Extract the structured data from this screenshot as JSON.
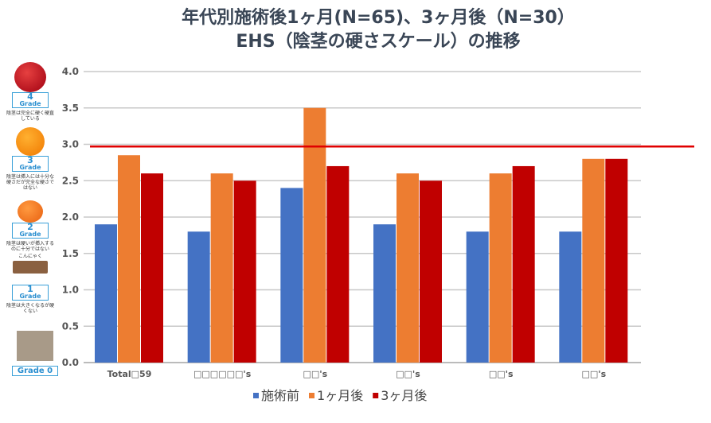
{
  "title_line1": "年代別施術後1ヶ月(N=65)、3ヶ月後（N=30）",
  "title_line2": "EHS（陰茎の硬さスケール）の推移",
  "grades": [
    {
      "num": "4",
      "label": "Grade",
      "desc": "陰茎は完全に硬く硬直している"
    },
    {
      "num": "3",
      "label": "Grade",
      "desc": "陰茎は挿入には十分な硬さだが完全な硬さではない"
    },
    {
      "num": "2",
      "label": "Grade",
      "desc": "陰茎は硬いが挿入するのに十分ではない",
      "extra": "こんにゃく"
    },
    {
      "num": "1",
      "label": "Grade",
      "desc": "陰茎は大きくなるが硬くない"
    },
    {
      "label": "Grade 0"
    }
  ],
  "colors": {
    "s0": "#4472c4",
    "s1": "#ed7d31",
    "s2": "#c00000",
    "ref": "#e00000"
  },
  "chart_data": {
    "type": "bar",
    "title": "年代別施術後1ヶ月(N=65)、3ヶ月後（N=30） EHS（陰茎の硬さスケール）の推移",
    "categories": [
      "Total□59",
      "□□□□□□'s",
      "□□'s",
      "□□'s",
      "□□'s",
      "□□'s"
    ],
    "series": [
      {
        "name": "施術前",
        "values": [
          1.9,
          1.8,
          2.4,
          1.9,
          1.8,
          1.8
        ]
      },
      {
        "name": "1ヶ月後",
        "values": [
          2.85,
          2.6,
          3.5,
          2.6,
          2.6,
          2.8
        ]
      },
      {
        "name": "3ヶ月後",
        "values": [
          2.6,
          2.5,
          2.7,
          2.5,
          2.7,
          2.8
        ]
      }
    ],
    "ylim": [
      0,
      4
    ],
    "yticks": [
      "0.0",
      "0.5",
      "1.0",
      "1.5",
      "2.0",
      "2.5",
      "3.0",
      "3.5",
      "4.0"
    ],
    "reference_line": 2.97,
    "grid": true,
    "legend": "bottom"
  }
}
